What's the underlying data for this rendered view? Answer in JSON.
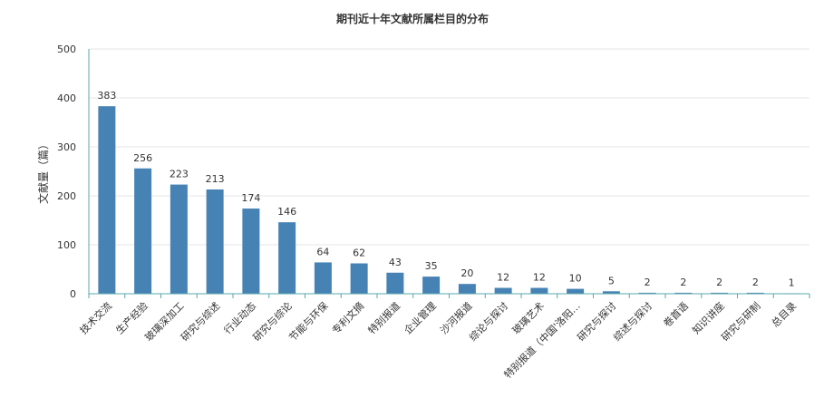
{
  "chart_data": {
    "type": "bar",
    "title": "期刊近十年文献所属栏目的分布",
    "xlabel": "",
    "ylabel": "文献量（篇）",
    "ylim": [
      0,
      500
    ],
    "yticks": [
      "0",
      "100",
      "200",
      "300",
      "400",
      "500"
    ],
    "grid": true,
    "categories": [
      "技术交流",
      "生产经验",
      "玻璃深加工",
      "研究与综述",
      "行业动态",
      "研究与综论",
      "节能与环保",
      "专利文摘",
      "特别报道",
      "企业管理",
      "沙河报道",
      "综论与探讨",
      "玻璃艺术",
      "特别报道（中国'洛阳…",
      "研究与探讨",
      "综述与探讨",
      "卷首语",
      "知识讲座",
      "研究与研制",
      "总目录"
    ],
    "values": [
      383,
      256,
      223,
      213,
      174,
      146,
      64,
      62,
      43,
      35,
      20,
      12,
      12,
      10,
      5,
      2,
      2,
      2,
      2,
      1
    ],
    "bar_color": "#4682b4",
    "grid_color": "#e6e6e6",
    "axis_color": "#5aa7ad"
  }
}
